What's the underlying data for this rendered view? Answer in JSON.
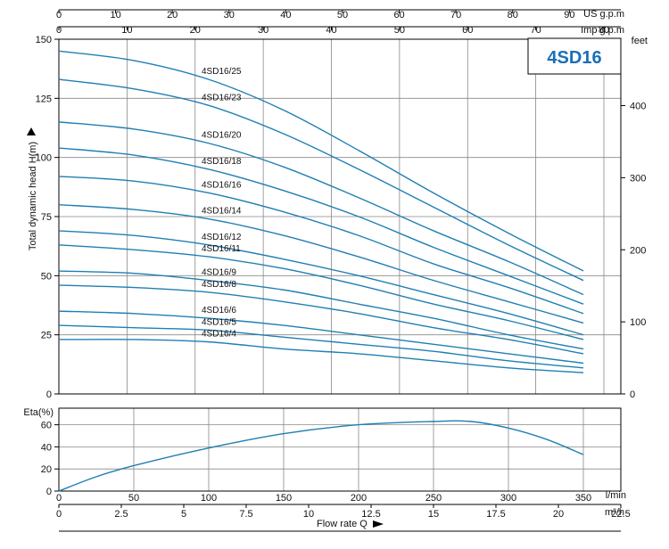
{
  "title": "4SD16",
  "colors": {
    "curve": "#1f7fb3",
    "badge_text": "#1a6fb8",
    "grid": "#888888",
    "axis": "#000000"
  },
  "chart_data": [
    {
      "type": "line",
      "title": "4SD16",
      "ylabel": "Total dynamic head H(m)",
      "x_unit": "l/min",
      "xlim": [
        0,
        375
      ],
      "ylim": [
        0,
        150
      ],
      "grid": true,
      "y_ticks": [
        0,
        25,
        50,
        75,
        100,
        125,
        150
      ],
      "right_axis": {
        "unit": "feet",
        "ticks": [
          0,
          100,
          200,
          300,
          400
        ]
      },
      "top_axes": [
        {
          "unit": "US g.p.m",
          "ticks": [
            0,
            10,
            20,
            30,
            40,
            50,
            60,
            70,
            80,
            90
          ]
        },
        {
          "unit": "Imp g.p.m",
          "ticks": [
            0,
            10,
            20,
            30,
            40,
            50,
            60,
            70,
            80
          ]
        }
      ],
      "series": [
        {
          "name": "4SD16/25",
          "x": [
            0,
            50,
            100,
            150,
            200,
            250,
            300,
            350
          ],
          "y": [
            145,
            141,
            133,
            120,
            103,
            85,
            68,
            52
          ]
        },
        {
          "name": "4SD16/23",
          "x": [
            0,
            50,
            100,
            150,
            200,
            250,
            300,
            350
          ],
          "y": [
            133,
            129,
            122,
            110,
            95,
            79,
            63,
            48
          ]
        },
        {
          "name": "4SD16/20",
          "x": [
            0,
            50,
            100,
            150,
            200,
            250,
            300,
            350
          ],
          "y": [
            115,
            112,
            106,
            96,
            83,
            69,
            56,
            42
          ]
        },
        {
          "name": "4SD16/18",
          "x": [
            0,
            50,
            100,
            150,
            200,
            250,
            300,
            350
          ],
          "y": [
            104,
            101,
            95,
            86,
            75,
            62,
            50,
            38
          ]
        },
        {
          "name": "4SD16/16",
          "x": [
            0,
            50,
            100,
            150,
            200,
            250,
            300,
            350
          ],
          "y": [
            92,
            90,
            85,
            77,
            67,
            55,
            45,
            34
          ]
        },
        {
          "name": "4SD16/14",
          "x": [
            0,
            50,
            100,
            150,
            200,
            250,
            300,
            350
          ],
          "y": [
            80,
            78,
            74,
            67,
            58,
            48,
            39,
            30
          ]
        },
        {
          "name": "4SD16/12",
          "x": [
            0,
            50,
            100,
            150,
            200,
            250,
            300,
            350
          ],
          "y": [
            69,
            67,
            63,
            57,
            50,
            42,
            34,
            25
          ]
        },
        {
          "name": "4SD16/11",
          "x": [
            0,
            50,
            100,
            150,
            200,
            250,
            300,
            350
          ],
          "y": [
            63,
            61,
            58,
            53,
            46,
            38,
            31,
            23
          ]
        },
        {
          "name": "4SD16/9",
          "x": [
            0,
            50,
            100,
            150,
            200,
            250,
            300,
            350
          ],
          "y": [
            52,
            51,
            48,
            44,
            38,
            32,
            25,
            19
          ]
        },
        {
          "name": "4SD16/8",
          "x": [
            0,
            50,
            100,
            150,
            200,
            250,
            300,
            350
          ],
          "y": [
            46,
            45,
            43,
            39,
            34,
            28,
            23,
            17
          ]
        },
        {
          "name": "4SD16/6",
          "x": [
            0,
            50,
            100,
            150,
            200,
            250,
            300,
            350
          ],
          "y": [
            35,
            34,
            32,
            29,
            25,
            21,
            17,
            13
          ]
        },
        {
          "name": "4SD16/5",
          "x": [
            0,
            50,
            100,
            150,
            200,
            250,
            300,
            350
          ],
          "y": [
            29,
            28,
            27,
            24,
            21,
            18,
            14,
            11
          ]
        },
        {
          "name": "4SD16/4",
          "x": [
            0,
            50,
            100,
            150,
            200,
            250,
            300,
            350
          ],
          "y": [
            23,
            23,
            22,
            19,
            17,
            14,
            11,
            9
          ]
        }
      ]
    },
    {
      "type": "line",
      "ylabel": "Eta(%)",
      "xlabel": "Flow rate Q",
      "x_unit": "l/min",
      "xlim": [
        0,
        375
      ],
      "ylim": [
        0,
        75
      ],
      "grid": true,
      "y_ticks": [
        0,
        20,
        40,
        60
      ],
      "x_ticks": [
        0,
        50,
        100,
        150,
        200,
        250,
        300,
        350
      ],
      "bottom_axis": {
        "unit": "m³/h",
        "ticks": [
          "0",
          "2.5",
          "5",
          "7.5",
          "10",
          "12.5",
          "15",
          "17.5",
          "20",
          "22.5"
        ]
      },
      "series": [
        {
          "x": [
            0,
            25,
            50,
            100,
            150,
            200,
            250,
            275,
            300,
            325,
            350
          ],
          "y": [
            0,
            13,
            23,
            39,
            52,
            60,
            63,
            63,
            57,
            47,
            33
          ]
        }
      ]
    }
  ]
}
